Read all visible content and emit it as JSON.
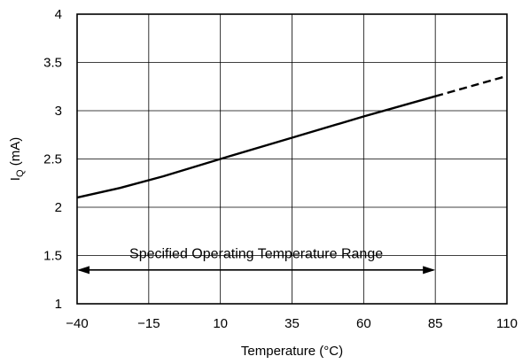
{
  "chart_data": {
    "type": "line",
    "xlabel": "Temperature (°C)",
    "ylabel_main": "I",
    "ylabel_sub": "Q",
    "ylabel_unit": " (mA)",
    "xlim": [
      -40,
      110
    ],
    "ylim": [
      1,
      4
    ],
    "x_ticks": [
      -40,
      -15,
      10,
      35,
      60,
      85,
      110
    ],
    "x_tick_labels": [
      "−40",
      "−15",
      "10",
      "35",
      "60",
      "85",
      "110"
    ],
    "y_ticks": [
      1,
      1.5,
      2,
      2.5,
      3,
      3.5,
      4
    ],
    "y_tick_labels": [
      "1",
      "1.5",
      "2",
      "2.5",
      "3",
      "3.5",
      "4"
    ],
    "grid": true,
    "series": [
      {
        "style": "solid",
        "color": "#000000",
        "x": [
          -40,
          -25,
          -10,
          10,
          35,
          60,
          85
        ],
        "y": [
          2.1,
          2.2,
          2.32,
          2.5,
          2.72,
          2.94,
          3.15
        ]
      },
      {
        "style": "dashed",
        "color": "#000000",
        "x": [
          85,
          110
        ],
        "y": [
          3.15,
          3.36
        ]
      }
    ],
    "annotation": {
      "text": "Specified Operating Temperature Range",
      "x_start": -40,
      "x_end": 85,
      "arrow_y": 1.35,
      "text_y": 1.52
    }
  }
}
